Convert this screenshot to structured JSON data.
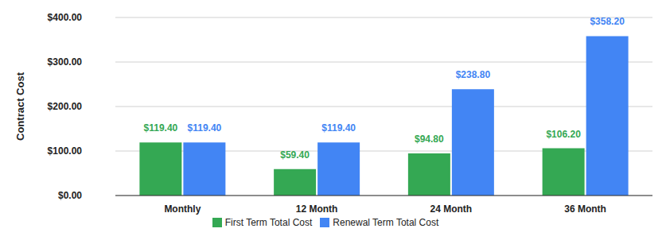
{
  "chart_data": {
    "type": "bar",
    "y_label": "Contract Cost",
    "categories": [
      "Monthly",
      "12 Month",
      "24 Month",
      "36 Month"
    ],
    "series": [
      {
        "name": "First Term Total Cost",
        "color": "#34a853",
        "values": [
          119.4,
          59.4,
          94.8,
          106.2
        ],
        "value_labels": [
          "$119.40",
          "$59.40",
          "$94.80",
          "$106.20"
        ]
      },
      {
        "name": "Renewal Term Total Cost",
        "color": "#4285f4",
        "values": [
          119.4,
          119.4,
          238.8,
          358.2
        ],
        "value_labels": [
          "$119.40",
          "$119.40",
          "$238.80",
          "$358.20"
        ]
      }
    ],
    "ylim": [
      0,
      400
    ],
    "yticks": [
      {
        "value": 0,
        "label": "$0.00"
      },
      {
        "value": 100,
        "label": "$100.00"
      },
      {
        "value": 200,
        "label": "$200.00"
      },
      {
        "value": 300,
        "label": "$300.00"
      },
      {
        "value": 400,
        "label": "$400.00"
      }
    ],
    "grid": true,
    "legend": "bottom",
    "data_labels": true
  }
}
